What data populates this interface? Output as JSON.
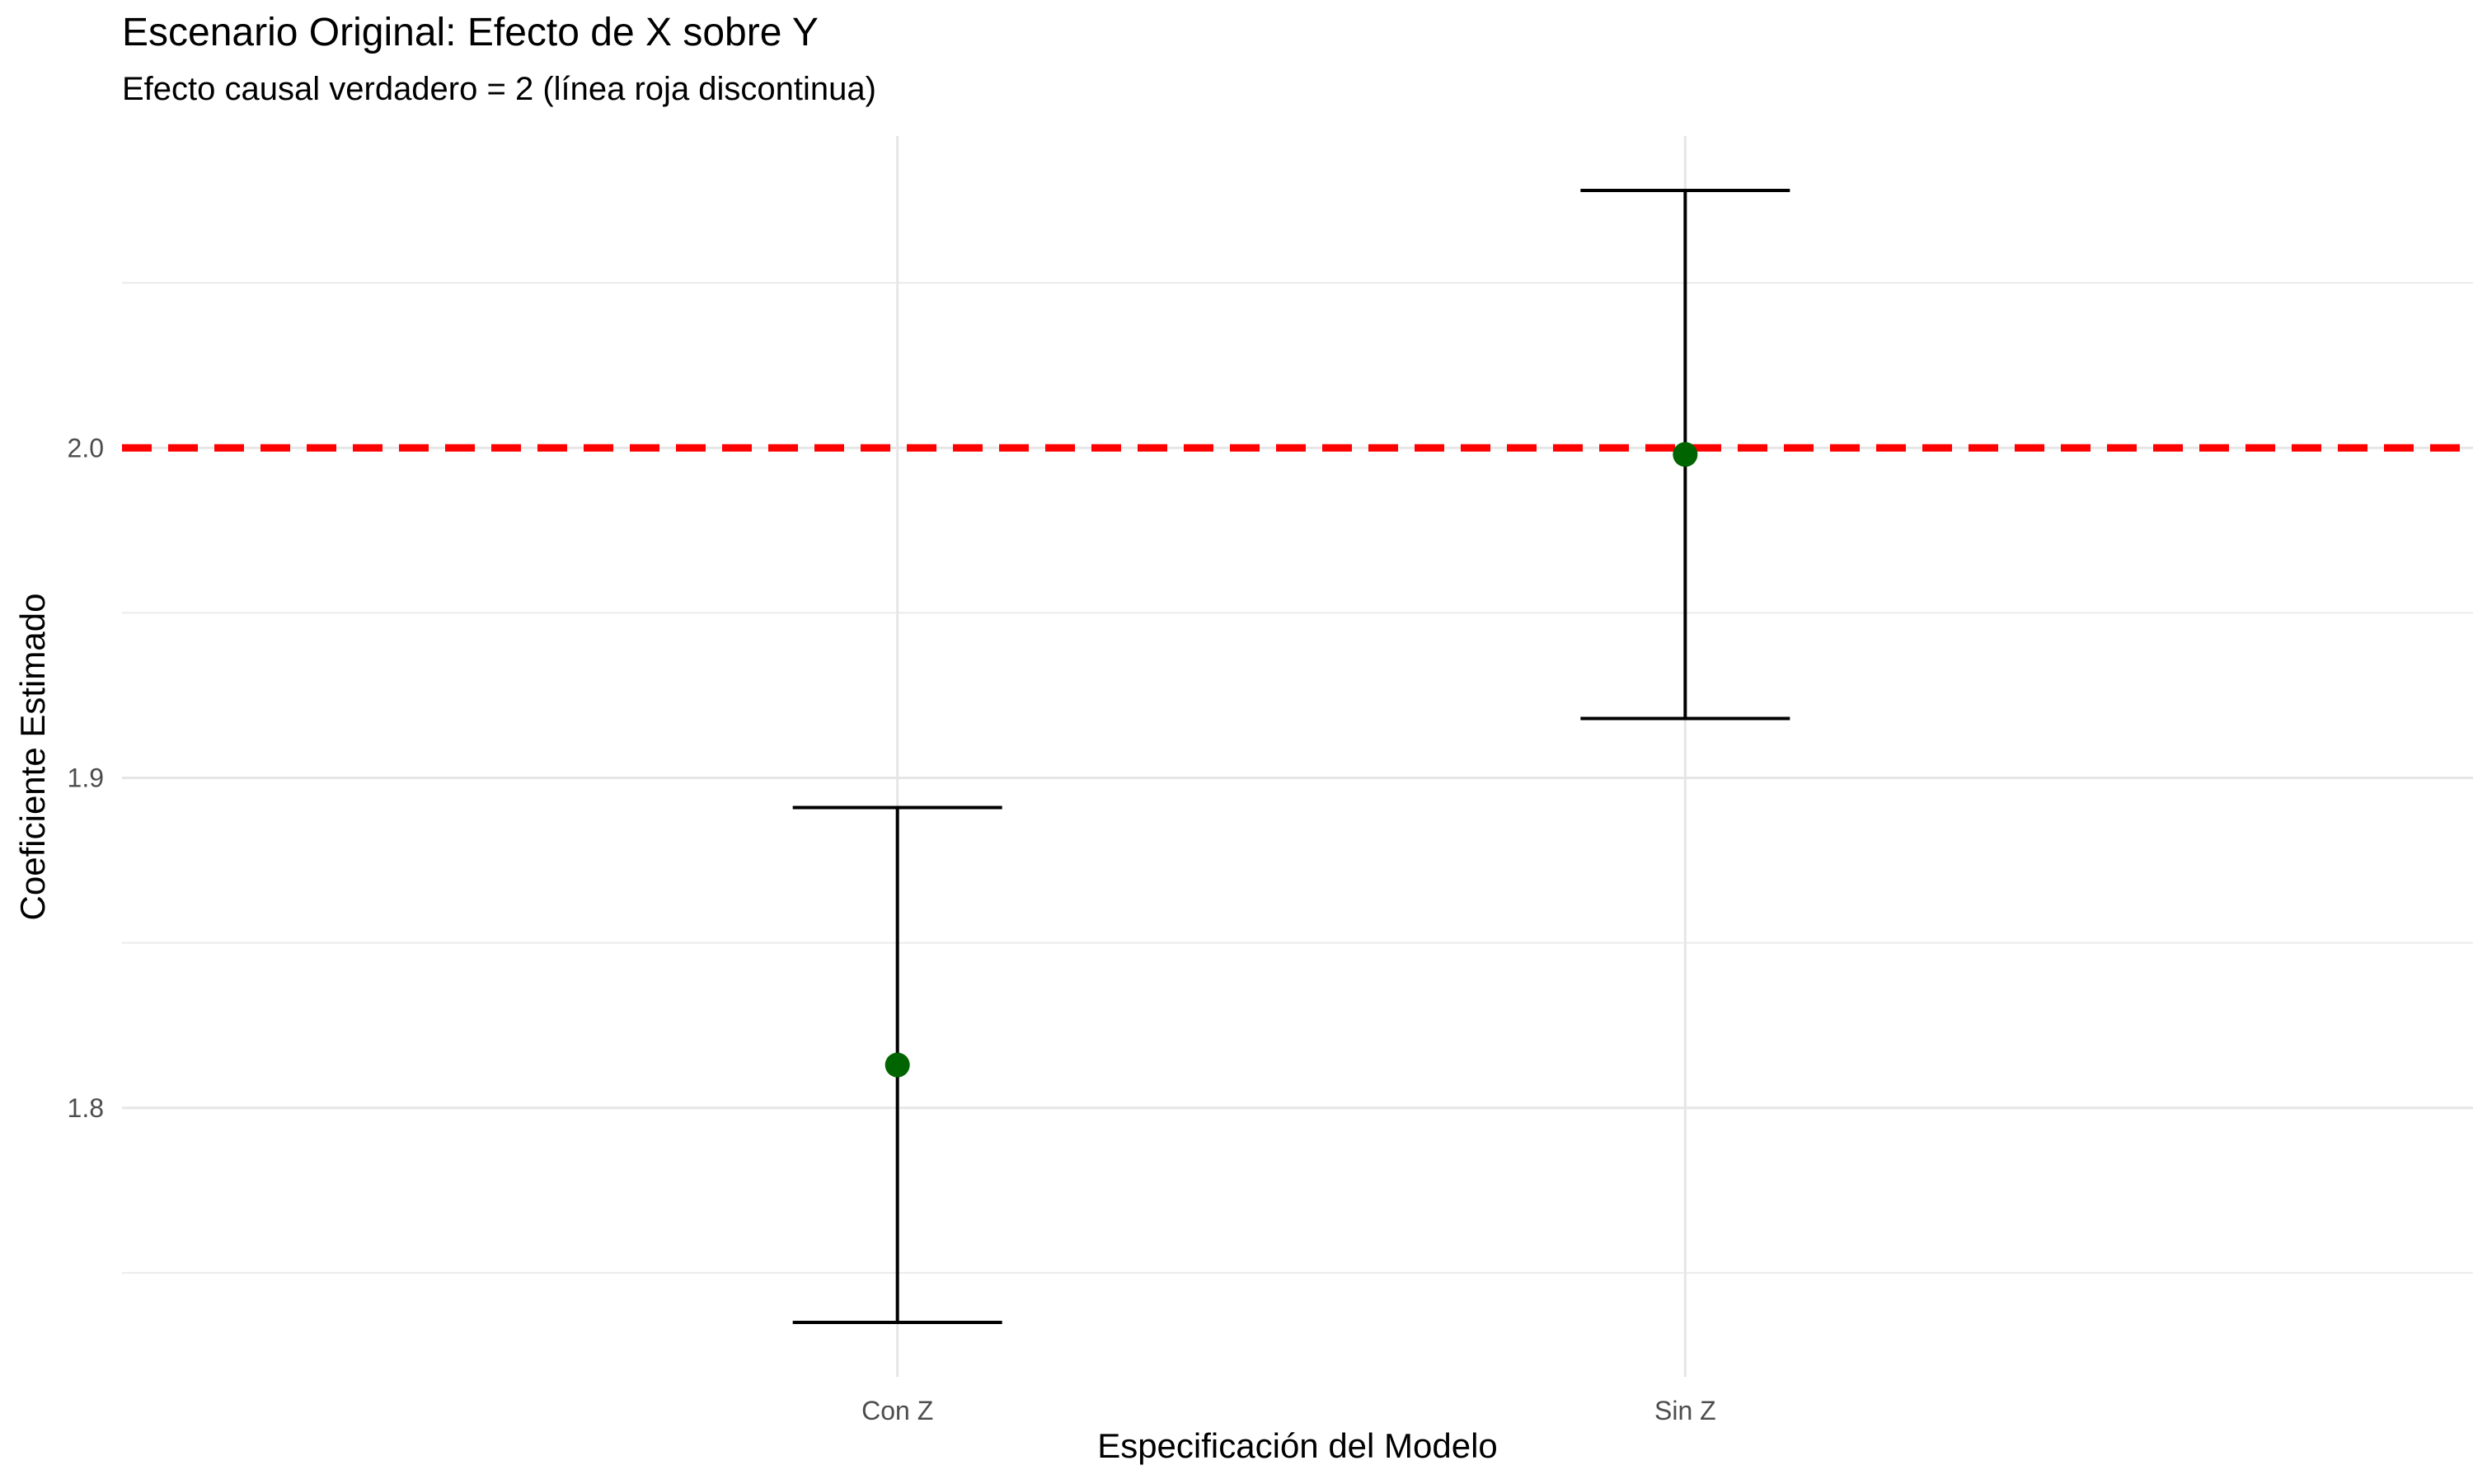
{
  "chart_data": {
    "type": "scatter",
    "title": "Escenario Original: Efecto de X sobre Y",
    "subtitle": "Efecto causal verdadero = 2 (línea roja discontinua)",
    "xlabel": "Especificación del Modelo",
    "ylabel": "Coeficiente Estimado",
    "categories": [
      "Con Z",
      "Sin Z"
    ],
    "estimates": [
      1.813,
      1.998
    ],
    "ci_lower": [
      1.735,
      1.918
    ],
    "ci_upper": [
      1.891,
      2.078
    ],
    "reference_line": {
      "value": 2.0,
      "style": "dashed",
      "color": "#ff0000"
    },
    "point_color": "#006400",
    "errorbar_color": "#000000",
    "ylim": [
      1.7185,
      2.0945
    ],
    "yticks": [
      1.8,
      1.9,
      2.0
    ],
    "ytick_labels": [
      "1.8",
      "1.9",
      "2.0"
    ],
    "grid": true,
    "legend": "none"
  }
}
